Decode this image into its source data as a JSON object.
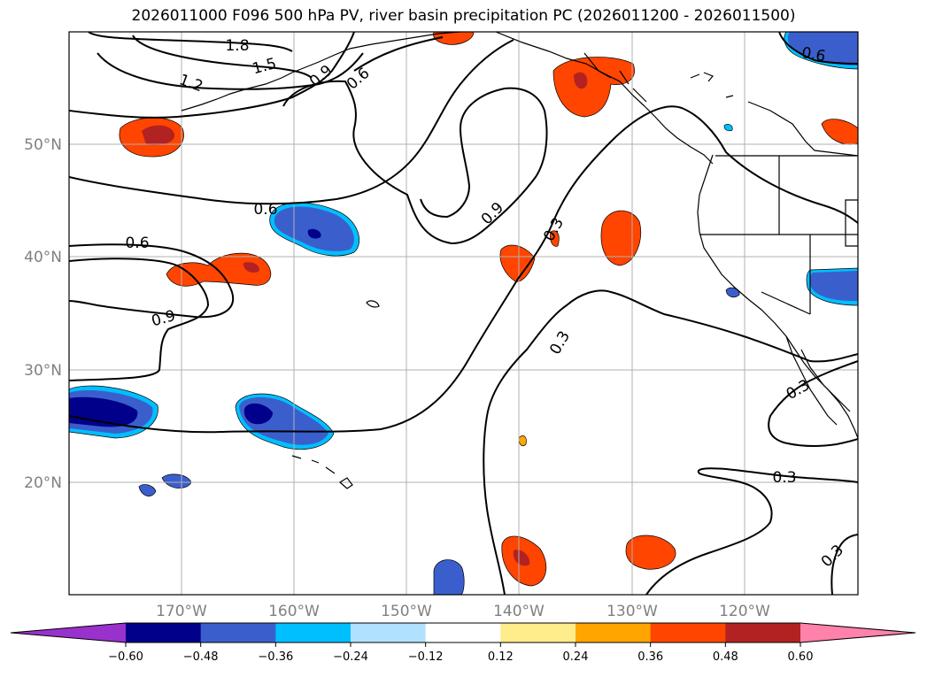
{
  "title": "2026011000 F096 500 hPa PV, river basin precipitation PC (2026011200 - 2026011500)",
  "lat_labels": [
    "50°N",
    "40°N",
    "30°N",
    "20°N"
  ],
  "lon_labels": [
    "170°W",
    "160°W",
    "150°W",
    "140°W",
    "130°W",
    "120°W"
  ],
  "contour_labels": [
    "1.8",
    "1.5",
    "1.2",
    "0.9",
    "0.6",
    "0.6",
    "0.6",
    "0.9",
    "0.9",
    "0.3",
    "0.3",
    "0.3",
    "0.3",
    "0.3",
    "0.6"
  ],
  "colorbar": {
    "colors": [
      "#9932cc",
      "#00008b",
      "#3a5fcd",
      "#00bfff",
      "#b0e2ff",
      "#ffffff",
      "#ffec8b",
      "#ffa500",
      "#ff4500",
      "#b22222",
      "#ff82ab"
    ],
    "ticks": [
      "−0.60",
      "−0.48",
      "−0.36",
      "−0.24",
      "−0.12",
      "0.12",
      "0.24",
      "0.36",
      "0.48",
      "0.60"
    ]
  }
}
